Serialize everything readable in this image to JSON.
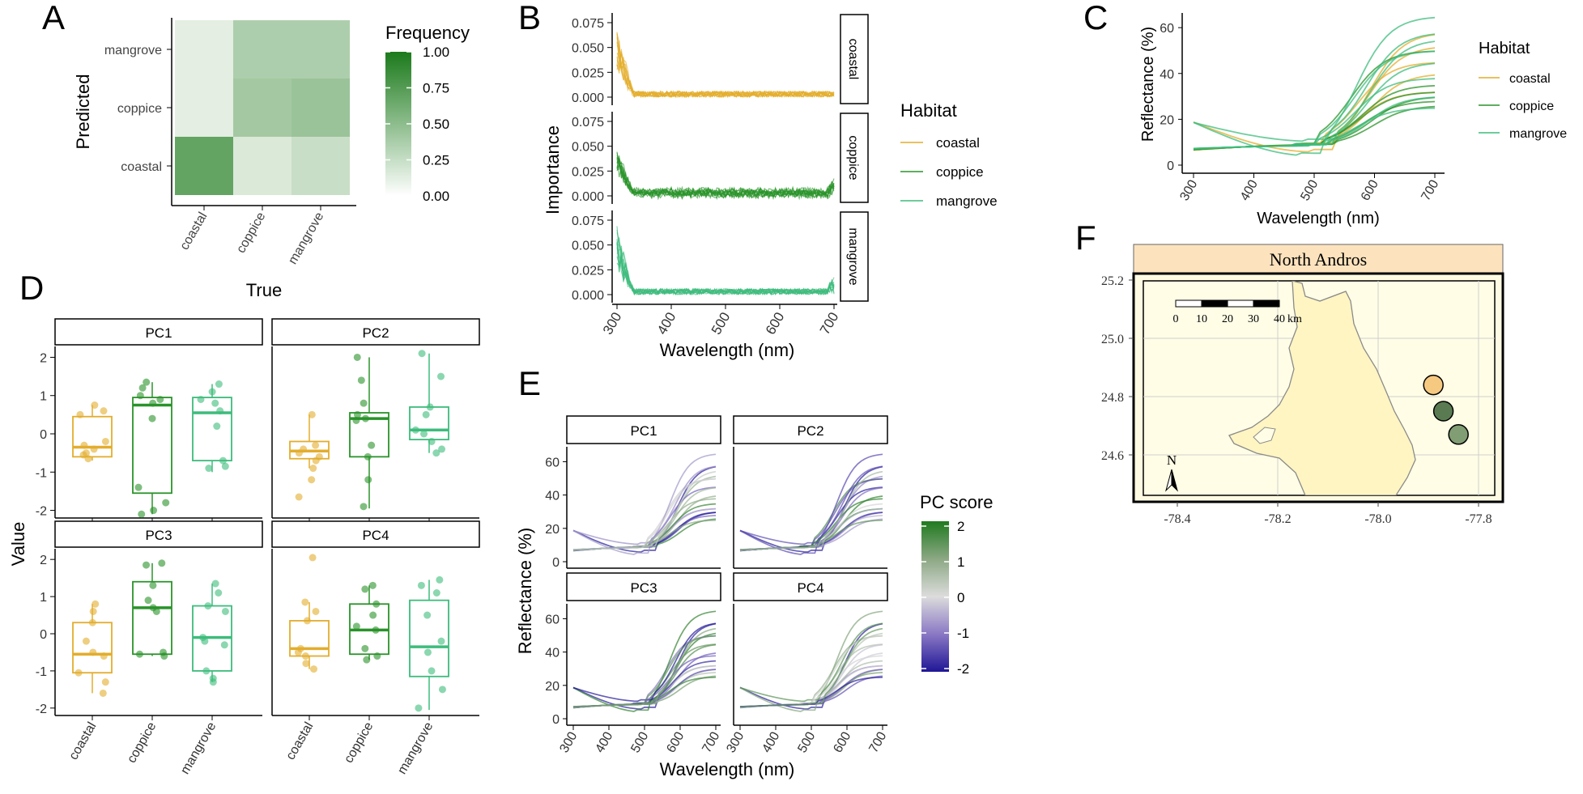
{
  "panel_labels": [
    "A",
    "B",
    "C",
    "D",
    "E",
    "F"
  ],
  "colors": {
    "coastal": "#e3ad2d",
    "coppice": "#2a932a",
    "mangrove": "#3dbc7c",
    "map_coastal": "#f6c980",
    "map_coppice": "#5a7b52",
    "map_mangrove": "#819d73"
  },
  "chart_data": [
    {
      "type": "heatmap",
      "xlabel": "True",
      "ylabel": "Predicted",
      "x_categories": [
        "coastal",
        "coppice",
        "mangrove"
      ],
      "y_categories": [
        "coastal",
        "coppice",
        "mangrove"
      ],
      "values": [
        [
          0.75,
          0.1,
          0.2
        ],
        [
          0.05,
          0.4,
          0.45
        ],
        [
          0.05,
          0.35,
          0.35
        ]
      ],
      "legend_title": "Frequency",
      "legend_ticks": [
        "1.00",
        "0.75",
        "0.50",
        "0.25",
        "0.00"
      ],
      "scale": [
        0,
        1
      ]
    },
    {
      "type": "line",
      "xlabel": "Wavelength (nm)",
      "ylabel": "Importance",
      "facets": [
        "coastal",
        "coppice",
        "mangrove"
      ],
      "x_range": [
        300,
        700
      ],
      "x_ticks": [
        "300",
        "400",
        "500",
        "600",
        "700"
      ],
      "y_ticks": [
        "0.000",
        "0.025",
        "0.050",
        "0.075"
      ],
      "ylim": [
        0,
        0.075
      ],
      "legend_title": "Habitat",
      "legend_entries": [
        "coastal",
        "coppice",
        "mangrove"
      ]
    },
    {
      "type": "line",
      "xlabel": "Wavelength (nm)",
      "ylabel": "Reflectance (%)",
      "x_ticks": [
        "300",
        "400",
        "500",
        "600",
        "700"
      ],
      "y_ticks": [
        "0",
        "20",
        "40",
        "60"
      ],
      "xlim": [
        300,
        700
      ],
      "ylim": [
        0,
        65
      ],
      "legend_title": "Habitat",
      "legend_entries": [
        "coastal",
        "coppice",
        "mangrove"
      ],
      "series": [
        {
          "habitat": "coastal",
          "peak": 58
        },
        {
          "habitat": "coastal",
          "peak": 52
        },
        {
          "habitat": "coastal",
          "peak": 45
        },
        {
          "habitat": "coastal",
          "peak": 40
        },
        {
          "habitat": "coastal",
          "peak": 32
        },
        {
          "habitat": "coppice",
          "peak": 30
        },
        {
          "habitat": "coppice",
          "peak": 32
        },
        {
          "habitat": "coppice",
          "peak": 26
        },
        {
          "habitat": "coppice",
          "peak": 35
        },
        {
          "habitat": "coppice",
          "peak": 50
        },
        {
          "habitat": "coppice",
          "peak": 28
        },
        {
          "habitat": "mangrove",
          "peak": 65
        },
        {
          "habitat": "mangrove",
          "peak": 58
        },
        {
          "habitat": "mangrove",
          "peak": 50
        },
        {
          "habitat": "mangrove",
          "peak": 45
        },
        {
          "habitat": "mangrove",
          "peak": 38
        },
        {
          "habitat": "mangrove",
          "peak": 30
        },
        {
          "habitat": "mangrove",
          "peak": 25
        },
        {
          "habitat": "mangrove",
          "peak": 55
        }
      ]
    },
    {
      "type": "box",
      "ylabel": "Value",
      "facets": [
        "PC1",
        "PC2",
        "PC3",
        "PC4"
      ],
      "categories": [
        "coastal",
        "coppice",
        "mangrove"
      ],
      "y_ticks": [
        "2",
        "1",
        "0",
        "-1",
        "-2"
      ],
      "ylim": [
        -2.2,
        2.2
      ],
      "boxes": {
        "PC1": [
          {
            "q1": -0.6,
            "med": -0.35,
            "q3": 0.45,
            "lo": -0.7,
            "hi": 0.75,
            "points": [
              0.75,
              0.6,
              0.5,
              -0.2,
              -0.3,
              -0.4,
              -0.5,
              -0.55,
              -0.65
            ]
          },
          {
            "q1": -1.55,
            "med": 0.75,
            "q3": 0.95,
            "lo": -2.1,
            "hi": 1.35,
            "points": [
              1.35,
              1.2,
              1.0,
              0.9,
              0.8,
              0.4,
              -1.4,
              -2.0,
              -1.8,
              -2.1
            ]
          },
          {
            "q1": -0.7,
            "med": 0.55,
            "q3": 0.95,
            "lo": -1.0,
            "hi": 1.3,
            "points": [
              1.3,
              1.1,
              0.9,
              0.8,
              0.6,
              0.2,
              -0.7,
              -0.9,
              -0.85
            ]
          }
        ],
        "PC2": [
          {
            "q1": -0.65,
            "med": -0.45,
            "q3": -0.2,
            "lo": -0.9,
            "hi": 0.5,
            "points": [
              0.5,
              -0.3,
              -0.4,
              -0.5,
              -0.6,
              -0.7,
              -0.9,
              -1.2,
              -1.65
            ]
          },
          {
            "q1": -0.6,
            "med": 0.4,
            "q3": 0.55,
            "lo": -1.95,
            "hi": 2.0,
            "points": [
              2.0,
              1.4,
              0.8,
              0.5,
              0.35,
              -0.3,
              -0.6,
              -1.9,
              -1.2,
              0.4
            ]
          },
          {
            "q1": -0.15,
            "med": 0.1,
            "q3": 0.7,
            "lo": -0.5,
            "hi": 2.1,
            "points": [
              2.1,
              1.5,
              0.7,
              0.5,
              0.1,
              0.0,
              -0.2,
              -0.4,
              -0.5
            ]
          }
        ],
        "PC3": [
          {
            "q1": -1.05,
            "med": -0.55,
            "q3": 0.3,
            "lo": -1.6,
            "hi": 0.8,
            "points": [
              0.8,
              0.6,
              0.3,
              -0.2,
              -0.5,
              -0.6,
              -1.05,
              -1.3,
              -1.6
            ]
          },
          {
            "q1": -0.55,
            "med": 0.7,
            "q3": 1.4,
            "lo": -0.6,
            "hi": 1.9,
            "points": [
              1.9,
              1.85,
              1.3,
              0.9,
              0.7,
              0.6,
              -0.5,
              -0.55,
              -0.6
            ]
          },
          {
            "q1": -1.0,
            "med": -0.1,
            "q3": 0.75,
            "lo": -1.3,
            "hi": 1.35,
            "points": [
              1.35,
              1.1,
              0.75,
              0.6,
              -0.1,
              -0.2,
              -0.3,
              -1.0,
              -1.2,
              -1.3
            ]
          }
        ],
        "PC4": [
          {
            "q1": -0.6,
            "med": -0.4,
            "q3": 0.35,
            "lo": -0.95,
            "hi": 0.85,
            "points": [
              2.05,
              0.85,
              0.6,
              0.35,
              -0.4,
              -0.5,
              -0.6,
              -0.8,
              -0.95
            ]
          },
          {
            "q1": -0.55,
            "med": 0.1,
            "q3": 0.8,
            "lo": -0.7,
            "hi": 1.3,
            "points": [
              1.3,
              1.2,
              0.8,
              0.5,
              0.2,
              0.1,
              -0.4,
              -0.6,
              -0.7
            ]
          },
          {
            "q1": -1.15,
            "med": -0.35,
            "q3": 0.9,
            "lo": -2.05,
            "hi": 1.45,
            "points": [
              1.45,
              1.3,
              1.1,
              0.5,
              -0.2,
              -0.5,
              -1.0,
              -1.5,
              -2.0
            ]
          }
        ]
      }
    },
    {
      "type": "line",
      "xlabel": "Wavelength (nm)",
      "ylabel": "Reflectance (%)",
      "facets": [
        "PC1",
        "PC2",
        "PC3",
        "PC4"
      ],
      "x_ticks": [
        "300",
        "400",
        "500",
        "600",
        "700"
      ],
      "y_ticks": [
        "0",
        "20",
        "40",
        "60"
      ],
      "xlim": [
        300,
        700
      ],
      "ylim": [
        0,
        67
      ],
      "legend_title": "PC score",
      "legend_ticks": [
        "2",
        "1",
        "0",
        "-1",
        "-2"
      ],
      "scale": [
        -2,
        2
      ]
    },
    {}
  ],
  "map": {
    "title": "North Andros",
    "north_label": "N",
    "lat_ticks": [
      "25.2",
      "25.0",
      "24.8",
      "24.6"
    ],
    "lon_ticks": [
      "-78.4",
      "-78.2",
      "-78.0",
      "-77.8"
    ],
    "scale_labels": [
      "0",
      "10",
      "20",
      "30",
      "40"
    ],
    "scale_unit": "km",
    "sites": [
      {
        "habitat": "coastal",
        "lon": -77.89,
        "lat": 24.84
      },
      {
        "habitat": "coppice",
        "lon": -77.87,
        "lat": 24.75
      },
      {
        "habitat": "mangrove",
        "lon": -77.84,
        "lat": 24.67
      }
    ]
  }
}
